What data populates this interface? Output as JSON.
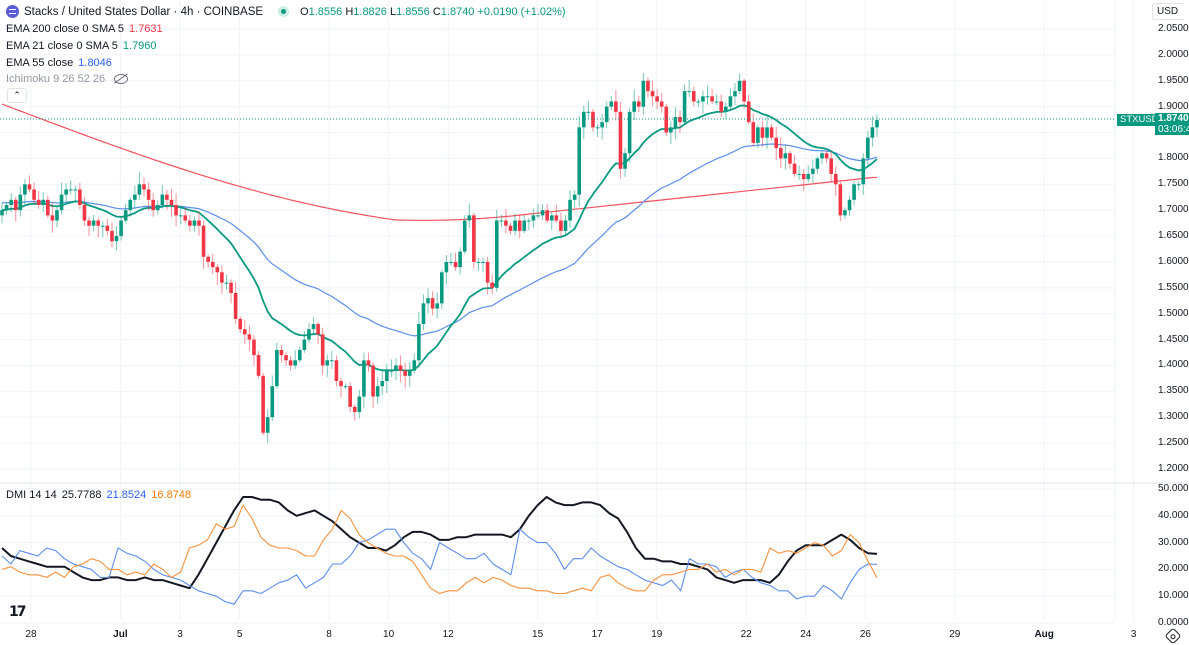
{
  "header": {
    "symbol_name": "Stacks / United States Dollar · 4h · COINBASE",
    "ohlc": {
      "o_label": "O",
      "o": "1.8556",
      "h_label": "H",
      "h": "1.8826",
      "l_label": "L",
      "l": "1.8556",
      "c_label": "C",
      "c": "1.8740",
      "change": "+0.0190 (+1.02%)"
    }
  },
  "indicators": [
    {
      "label": "EMA 200 close 0 SMA 5",
      "value": "1.7631",
      "color": "#f23645"
    },
    {
      "label": "EMA 21 close 0 SMA 5",
      "value": "1.7960",
      "color": "#089981"
    },
    {
      "label": "EMA 55 close",
      "value": "1.8046",
      "color": "#2962ff"
    },
    {
      "label": "Ichimoku 9 26 52 26",
      "value": "",
      "color": "#9598a1"
    }
  ],
  "dmi_legend": {
    "label": "DMI 14 14",
    "adx": "25.7788",
    "plus_di": "21.8524",
    "minus_di": "16.8748"
  },
  "price_axis": {
    "currency": "USD",
    "current_price": "1.8740",
    "countdown": "03:06:4",
    "symbol_tag": "STXUSD"
  },
  "colors": {
    "up": "#089981",
    "down": "#f23645",
    "ema200": "#f7525f",
    "ema21": "#089981",
    "ema55": "#5b8def",
    "adx": "#131722",
    "plus_di": "#5b8def",
    "minus_di": "#f7913c",
    "grid": "#f0f3fa"
  },
  "chart_data": [
    {
      "type": "candlestick",
      "title": "Stacks / United States Dollar · 4h · COINBASE",
      "ylabel": "USD",
      "ylim": [
        1.18,
        2.07
      ],
      "y_ticks": [
        "2.0500",
        "2.0000",
        "1.9500",
        "1.9000",
        "1.8500",
        "1.8000",
        "1.7500",
        "1.7000",
        "1.6500",
        "1.6000",
        "1.5500",
        "1.5000",
        "1.4500",
        "1.4000",
        "1.3500",
        "1.3000",
        "1.2500",
        "1.2000"
      ],
      "x_ticks": [
        "28",
        "Jul",
        "3",
        "5",
        "8",
        "10",
        "12",
        "15",
        "17",
        "19",
        "22",
        "24",
        "26",
        "29",
        "Aug",
        "3"
      ],
      "x_tick_day_index": [
        0,
        3,
        5,
        7,
        10,
        12,
        14,
        17,
        19,
        21,
        24,
        26,
        28,
        31,
        34,
        37
      ],
      "candles_per_day": 6,
      "first_candle_day_offset": -1,
      "closes": [
        1.7,
        1.71,
        1.72,
        1.7,
        1.73,
        1.75,
        1.74,
        1.72,
        1.71,
        1.72,
        1.69,
        1.68,
        1.7,
        1.73,
        1.74,
        1.74,
        1.74,
        1.71,
        1.68,
        1.67,
        1.68,
        1.67,
        1.67,
        1.66,
        1.64,
        1.65,
        1.68,
        1.7,
        1.72,
        1.73,
        1.75,
        1.74,
        1.72,
        1.7,
        1.71,
        1.73,
        1.72,
        1.71,
        1.69,
        1.69,
        1.68,
        1.67,
        1.68,
        1.67,
        1.61,
        1.6,
        1.59,
        1.58,
        1.56,
        1.56,
        1.54,
        1.49,
        1.47,
        1.46,
        1.45,
        1.42,
        1.38,
        1.27,
        1.3,
        1.36,
        1.43,
        1.42,
        1.41,
        1.4,
        1.41,
        1.43,
        1.45,
        1.47,
        1.48,
        1.46,
        1.4,
        1.41,
        1.41,
        1.37,
        1.36,
        1.36,
        1.32,
        1.31,
        1.34,
        1.41,
        1.4,
        1.34,
        1.36,
        1.37,
        1.39,
        1.39,
        1.4,
        1.39,
        1.38,
        1.39,
        1.41,
        1.48,
        1.52,
        1.53,
        1.51,
        1.52,
        1.58,
        1.6,
        1.6,
        1.59,
        1.62,
        1.68,
        1.69,
        1.6,
        1.6,
        1.6,
        1.56,
        1.55,
        1.68,
        1.68,
        1.67,
        1.66,
        1.68,
        1.66,
        1.68,
        1.68,
        1.69,
        1.69,
        1.7,
        1.68,
        1.69,
        1.68,
        1.66,
        1.68,
        1.72,
        1.73,
        1.86,
        1.89,
        1.89,
        1.86,
        1.86,
        1.87,
        1.9,
        1.91,
        1.89,
        1.78,
        1.81,
        1.89,
        1.91,
        1.9,
        1.95,
        1.93,
        1.92,
        1.91,
        1.9,
        1.85,
        1.86,
        1.88,
        1.87,
        1.93,
        1.93,
        1.91,
        1.91,
        1.92,
        1.92,
        1.91,
        1.91,
        1.89,
        1.9,
        1.92,
        1.93,
        1.95,
        1.91,
        1.87,
        1.83,
        1.86,
        1.84,
        1.86,
        1.84,
        1.82,
        1.8,
        1.81,
        1.79,
        1.77,
        1.77,
        1.76,
        1.77,
        1.78,
        1.8,
        1.81,
        1.8,
        1.77,
        1.75,
        1.69,
        1.7,
        1.72,
        1.75,
        1.75,
        1.8,
        1.84,
        1.86,
        1.874
      ],
      "series": [
        {
          "name": "EMA 200",
          "last": 1.7631
        },
        {
          "name": "EMA 21",
          "last": 1.796
        },
        {
          "name": "EMA 55",
          "last": 1.8046
        }
      ]
    },
    {
      "type": "line",
      "title": "DMI 14 14",
      "ylim": [
        0,
        50
      ],
      "y_ticks": [
        "50.0000",
        "40.0000",
        "30.0000",
        "20.0000",
        "10.0000",
        "0.0000"
      ],
      "series": [
        {
          "name": "ADX",
          "values": [
            28,
            25,
            24,
            23,
            22,
            21,
            21,
            21,
            19,
            17,
            16,
            16,
            17,
            17,
            16,
            16,
            17,
            16,
            16,
            15,
            14,
            13,
            18,
            24,
            30,
            36,
            42,
            47,
            47,
            46,
            46,
            45,
            42,
            40,
            41,
            42,
            40,
            38,
            35,
            32,
            30,
            28,
            28,
            27,
            29,
            32,
            34,
            34,
            33,
            31,
            31,
            32,
            32,
            33,
            33,
            33,
            33,
            32,
            35,
            40,
            44,
            47,
            45,
            44,
            44,
            45,
            45,
            44,
            41,
            39,
            34,
            28,
            24,
            24,
            23,
            23,
            22,
            22,
            21,
            20,
            17,
            16,
            15,
            16,
            16,
            16,
            15,
            18,
            23,
            27,
            29,
            29,
            29,
            31,
            33,
            31,
            28,
            26,
            25.78
          ]
        },
        {
          "name": "+DI",
          "values": [
            25,
            22,
            27,
            26,
            25,
            28,
            27,
            24,
            22,
            21,
            20,
            17,
            17,
            28,
            26,
            25,
            23,
            20,
            18,
            17,
            16,
            14,
            12,
            11,
            10,
            8,
            7,
            12,
            12,
            11,
            13,
            15,
            16,
            18,
            13,
            15,
            17,
            22,
            22,
            25,
            30,
            31,
            33,
            35,
            35,
            30,
            26,
            24,
            20,
            30,
            28,
            26,
            24,
            24,
            26,
            22,
            20,
            18,
            35,
            32,
            30,
            30,
            26,
            20,
            24,
            24,
            28,
            25,
            23,
            21,
            20,
            18,
            16,
            15,
            14,
            16,
            12,
            24,
            22,
            22,
            21,
            17,
            19,
            20,
            17,
            15,
            14,
            12,
            12,
            9,
            10,
            10,
            14,
            12,
            9,
            15,
            20,
            22,
            21.85
          ]
        },
        {
          "name": "-DI",
          "values": [
            20,
            21,
            19,
            18,
            18,
            17,
            19,
            17,
            21,
            22,
            24,
            23,
            20,
            20,
            18,
            19,
            18,
            22,
            20,
            17,
            19,
            28,
            29,
            31,
            37,
            35,
            36,
            44,
            39,
            32,
            29,
            28,
            28,
            27,
            25,
            25,
            31,
            35,
            42,
            39,
            33,
            30,
            28,
            26,
            25,
            25,
            23,
            18,
            13,
            11,
            12,
            12,
            15,
            17,
            15,
            17,
            16,
            14,
            13,
            13,
            12,
            12,
            11,
            11,
            12,
            13,
            12,
            17,
            18,
            15,
            13,
            12,
            12,
            16,
            18,
            18,
            19,
            20,
            20,
            22,
            19,
            20,
            18,
            20,
            20,
            19,
            28,
            26,
            27,
            26,
            28,
            30,
            29,
            25,
            27,
            33,
            30,
            23,
            16.87
          ]
        }
      ]
    }
  ],
  "tv_logo": "17"
}
